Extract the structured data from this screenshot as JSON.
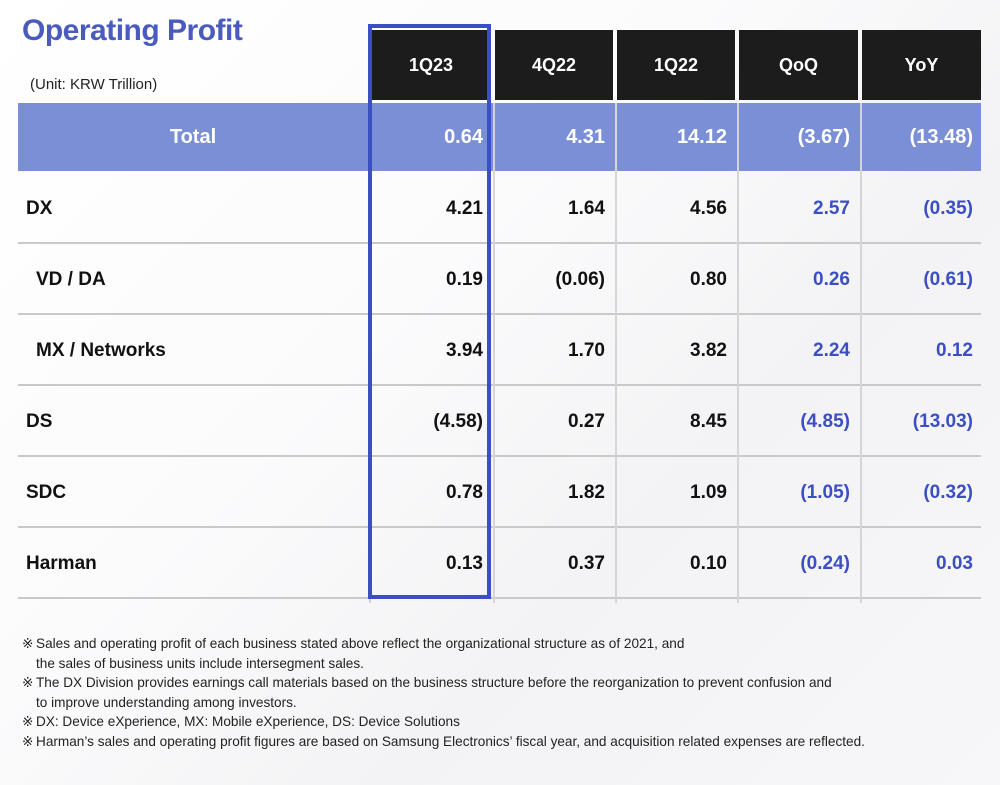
{
  "title": "Operating Profit",
  "unit": "(Unit: KRW Trillion)",
  "columns": [
    "1Q23",
    "4Q22",
    "1Q22",
    "QoQ",
    "YoY"
  ],
  "total": {
    "label": "Total",
    "values": [
      "0.64",
      "4.31",
      "14.12",
      "(3.67)",
      "(13.48)"
    ]
  },
  "rows": [
    {
      "label": "DX",
      "values": [
        "4.21",
        "1.64",
        "4.56",
        "2.57",
        "(0.35)"
      ]
    },
    {
      "label": "VD / DA",
      "values": [
        "0.19",
        "(0.06)",
        "0.80",
        "0.26",
        "(0.61)"
      ]
    },
    {
      "label": "MX / Networks",
      "values": [
        "3.94",
        "1.70",
        "3.82",
        "2.24",
        "0.12"
      ]
    },
    {
      "label": "DS",
      "values": [
        "(4.58)",
        "0.27",
        "8.45",
        "(4.85)",
        "(13.03)"
      ]
    },
    {
      "label": "SDC",
      "values": [
        "0.78",
        "1.82",
        "1.09",
        "(1.05)",
        "(0.32)"
      ]
    },
    {
      "label": "Harman",
      "values": [
        "0.13",
        "0.37",
        "0.10",
        "(0.24)",
        "0.03"
      ]
    }
  ],
  "notes": [
    {
      "mark": "※",
      "lines": [
        "Sales and operating profit of each business stated above reflect the organizational structure  as of 2021, and",
        "the sales of business units include intersegment sales."
      ]
    },
    {
      "mark": "※",
      "lines": [
        "The DX Division provides earnings call materials based on the business structure before the reorganization to prevent confusion and",
        "to improve understanding among investors."
      ]
    },
    {
      "mark": "※",
      "lines": [
        "DX: Device eXperience, MX: Mobile eXperience, DS: Device Solutions"
      ]
    },
    {
      "mark": "※",
      "lines": [
        "Harman’s sales and operating profit figures are based on Samsung Electronics’ fiscal year, and acquisition related expenses  are reflected."
      ]
    }
  ],
  "colors": {
    "title": "#4a5bbd",
    "header_bg": "#1c1c1c",
    "total_bg": "#7b8fd6",
    "accent_blue": "#3b4fc2"
  }
}
